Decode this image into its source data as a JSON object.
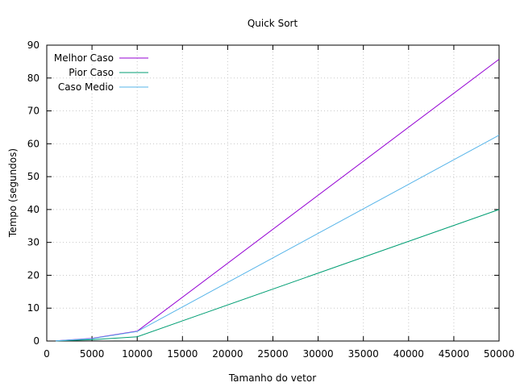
{
  "chart_data": {
    "type": "line",
    "title": "Quick Sort",
    "xlabel": "Tamanho do vetor",
    "ylabel": "Tempo (segundos)",
    "xlim": [
      0,
      50000
    ],
    "ylim": [
      0,
      90
    ],
    "xticks": [
      0,
      5000,
      10000,
      15000,
      20000,
      25000,
      30000,
      35000,
      40000,
      45000,
      50000
    ],
    "yticks": [
      0,
      10,
      20,
      30,
      40,
      50,
      60,
      70,
      80,
      90
    ],
    "grid": true,
    "legend_position": "top-left",
    "series": [
      {
        "name": "Melhor Caso",
        "color": "#9400d3",
        "x": [
          1000,
          5000,
          10000,
          50000
        ],
        "values": [
          0.05,
          0.8,
          3.0,
          85.7
        ]
      },
      {
        "name": "Pior Caso",
        "color": "#009e73",
        "x": [
          1000,
          5000,
          10000,
          50000
        ],
        "values": [
          0.03,
          0.4,
          1.3,
          40.0
        ]
      },
      {
        "name": "Caso Medio",
        "color": "#56b4e9",
        "x": [
          1000,
          5000,
          10000,
          50000
        ],
        "values": [
          0.05,
          0.7,
          2.9,
          62.6
        ]
      }
    ]
  }
}
